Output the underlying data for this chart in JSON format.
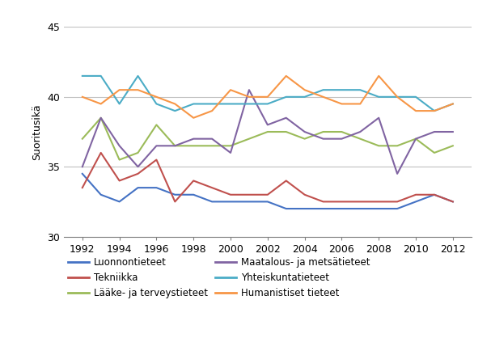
{
  "years": [
    1992,
    1993,
    1994,
    1995,
    1996,
    1997,
    1998,
    1999,
    2000,
    2001,
    2002,
    2003,
    2004,
    2005,
    2006,
    2007,
    2008,
    2009,
    2010,
    2011,
    2012
  ],
  "series": {
    "Luonnontieteet": [
      34.5,
      33.0,
      32.5,
      33.5,
      33.5,
      33.0,
      33.0,
      32.5,
      32.5,
      32.5,
      32.5,
      32.0,
      32.0,
      32.0,
      32.0,
      32.0,
      32.0,
      32.0,
      32.5,
      33.0,
      32.5
    ],
    "Tekniikka": [
      33.5,
      36.0,
      34.0,
      34.5,
      35.5,
      32.5,
      34.0,
      33.5,
      33.0,
      33.0,
      33.0,
      34.0,
      33.0,
      32.5,
      32.5,
      32.5,
      32.5,
      32.5,
      33.0,
      33.0,
      32.5
    ],
    "Lääke- ja terveystieteet": [
      37.0,
      38.5,
      35.5,
      36.0,
      38.0,
      36.5,
      36.5,
      36.5,
      36.5,
      37.0,
      37.5,
      37.5,
      37.0,
      37.5,
      37.5,
      37.0,
      36.5,
      36.5,
      37.0,
      36.0,
      36.5
    ],
    "Maatalous- ja metsätieteet": [
      35.0,
      38.5,
      36.5,
      35.0,
      36.5,
      36.5,
      37.0,
      37.0,
      36.0,
      40.5,
      38.0,
      38.5,
      37.5,
      37.0,
      37.0,
      37.5,
      38.5,
      34.5,
      37.0,
      37.5,
      37.5
    ],
    "Yhteiskuntatieteet": [
      41.5,
      41.5,
      39.5,
      41.5,
      39.5,
      39.0,
      39.5,
      39.5,
      39.5,
      39.5,
      39.5,
      40.0,
      40.0,
      40.5,
      40.5,
      40.5,
      40.0,
      40.0,
      40.0,
      39.0,
      39.5
    ],
    "Humanistiset tieteet": [
      40.0,
      39.5,
      40.5,
      40.5,
      40.0,
      39.5,
      38.5,
      39.0,
      40.5,
      40.0,
      40.0,
      41.5,
      40.5,
      40.0,
      39.5,
      39.5,
      41.5,
      40.0,
      39.0,
      39.0,
      39.5
    ]
  },
  "colors": {
    "Luonnontieteet": "#4472C4",
    "Tekniikka": "#C0504D",
    "Lääke- ja terveystieteet": "#9BBB59",
    "Maatalous- ja metsätieteet": "#8064A2",
    "Yhteiskuntatieteet": "#4BACC6",
    "Humanistiset tieteet": "#F79646"
  },
  "legend_order": [
    "Luonnontieteet",
    "Tekniikka",
    "Lääke- ja terveystieteet",
    "Maatalous- ja metsätieteet",
    "Yhteiskuntatieteet",
    "Humanistiset tieteet"
  ],
  "ylabel": "Suoritusikä",
  "ylim": [
    30,
    45
  ],
  "yticks": [
    30,
    35,
    40,
    45
  ],
  "xticks": [
    1992,
    1994,
    1996,
    1998,
    2000,
    2002,
    2004,
    2006,
    2008,
    2010,
    2012
  ],
  "background_color": "#ffffff",
  "grid_color": "#c0c0c0"
}
